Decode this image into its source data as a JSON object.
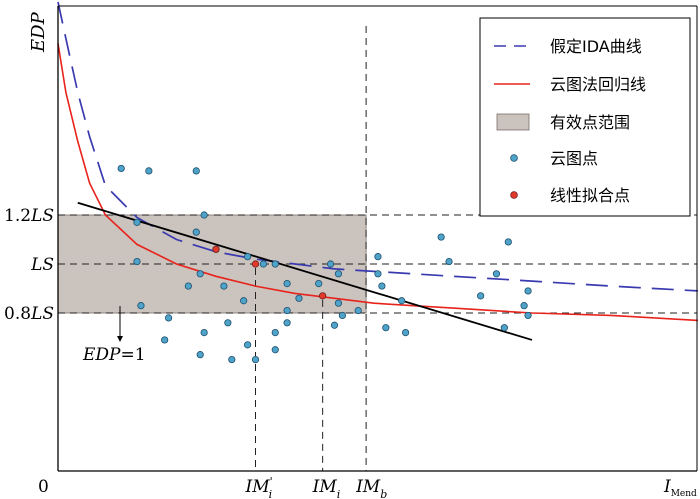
{
  "chart_data": {
    "type": "scatter",
    "axes": {
      "y_label": "EDP",
      "x_label_main": "I",
      "x_label_sub": "Mend",
      "origin_label": "0"
    },
    "y_levels": [
      {
        "name": "1.2LS",
        "num": "1.2",
        "it": "LS",
        "value": 1.2
      },
      {
        "name": "LS",
        "num": "",
        "it": "LS",
        "value": 1.0
      },
      {
        "name": "0.8LS",
        "num": "0.8",
        "it": "LS",
        "value": 0.8
      }
    ],
    "x_markers": [
      {
        "name": "im-prime-i",
        "main": "IM",
        "sup": "'",
        "sub": "i",
        "value": 0.5
      },
      {
        "name": "im-i",
        "main": "IM",
        "sup": "",
        "sub": "i",
        "value": 0.67
      },
      {
        "name": "im-b",
        "main": "IM",
        "sup": "",
        "sub": "b",
        "value": 0.78
      }
    ],
    "annotation": {
      "label": "EDP=1",
      "it": "EDP",
      "rest": "=1"
    },
    "legend": {
      "position": "top-right",
      "items": [
        {
          "label": "假定IDA曲线",
          "style": "dashed-line",
          "color": "#3a3ab0"
        },
        {
          "label": "云图法回归线",
          "style": "line",
          "color": "#e8231c"
        },
        {
          "label": "有效点范围",
          "style": "band",
          "color": "#cbc3bd"
        },
        {
          "label": "云图点",
          "style": "point",
          "color": "#4fa3c9"
        },
        {
          "label": "线性拟合点",
          "style": "point",
          "color": "#e23a2a"
        }
      ]
    },
    "cloud_points": [
      [
        0.16,
        1.39
      ],
      [
        0.2,
        1.17
      ],
      [
        0.2,
        1.01
      ],
      [
        0.21,
        0.83
      ],
      [
        0.28,
        0.78
      ],
      [
        0.27,
        0.69
      ],
      [
        0.35,
        1.13
      ],
      [
        0.37,
        1.2
      ],
      [
        0.4,
        1.06
      ],
      [
        0.48,
        1.03
      ],
      [
        0.52,
        1.0
      ],
      [
        0.55,
        1.0
      ],
      [
        0.58,
        0.92
      ],
      [
        0.58,
        0.81
      ],
      [
        0.36,
        0.96
      ],
      [
        0.33,
        0.91
      ],
      [
        0.42,
        0.91
      ],
      [
        0.47,
        0.85
      ],
      [
        0.37,
        0.72
      ],
      [
        0.36,
        0.63
      ],
      [
        0.43,
        0.76
      ],
      [
        0.44,
        0.61
      ],
      [
        0.48,
        0.67
      ],
      [
        0.5,
        0.61
      ],
      [
        0.55,
        0.72
      ],
      [
        0.55,
        0.65
      ],
      [
        0.58,
        0.76
      ],
      [
        0.61,
        0.86
      ],
      [
        0.66,
        0.92
      ],
      [
        0.71,
        0.96
      ],
      [
        0.71,
        0.84
      ],
      [
        0.72,
        0.79
      ],
      [
        0.7,
        0.75
      ],
      [
        0.76,
        0.81
      ],
      [
        0.81,
        0.96
      ],
      [
        0.82,
        0.91
      ],
      [
        0.83,
        0.74
      ],
      [
        0.87,
        0.85
      ],
      [
        0.88,
        0.72
      ],
      [
        0.69,
        1.0
      ],
      [
        0.81,
        1.03
      ],
      [
        0.97,
        1.11
      ],
      [
        0.99,
        1.01
      ],
      [
        1.07,
        0.87
      ],
      [
        1.19,
        0.79
      ],
      [
        1.19,
        0.89
      ],
      [
        1.18,
        0.83
      ],
      [
        1.14,
        1.09
      ],
      [
        1.11,
        0.96
      ],
      [
        1.13,
        0.74
      ],
      [
        0.23,
        1.38
      ],
      [
        0.35,
        1.38
      ]
    ],
    "fit_points": [
      [
        0.4,
        1.06
      ],
      [
        0.5,
        1.0
      ],
      [
        0.67,
        0.87
      ]
    ],
    "regression_line": {
      "x": [
        0.05,
        1.2
      ],
      "y": [
        1.25,
        0.69
      ]
    },
    "ida_curve": {
      "x": [
        0.0,
        0.02,
        0.05,
        0.08,
        0.12,
        0.2,
        0.3,
        0.4,
        0.5,
        0.6,
        0.7,
        0.8,
        0.9,
        1.0,
        1.2,
        1.4,
        1.62
      ],
      "y": [
        2.07,
        1.92,
        1.7,
        1.52,
        1.32,
        1.19,
        1.1,
        1.05,
        1.02,
        1.0,
        0.98,
        0.97,
        0.96,
        0.95,
        0.93,
        0.91,
        0.89
      ]
    },
    "cloud_regression_curve": {
      "x": [
        0.0,
        0.02,
        0.05,
        0.08,
        0.12,
        0.2,
        0.3,
        0.4,
        0.5,
        0.6,
        0.7,
        0.8,
        0.9,
        1.0,
        1.2,
        1.4,
        1.62
      ],
      "y": [
        1.9,
        1.7,
        1.5,
        1.33,
        1.2,
        1.08,
        1.0,
        0.95,
        0.91,
        0.88,
        0.86,
        0.84,
        0.83,
        0.82,
        0.8,
        0.79,
        0.77
      ]
    },
    "band": {
      "ymin": 0.8,
      "ymax": 1.2,
      "xmax": 0.78
    }
  }
}
